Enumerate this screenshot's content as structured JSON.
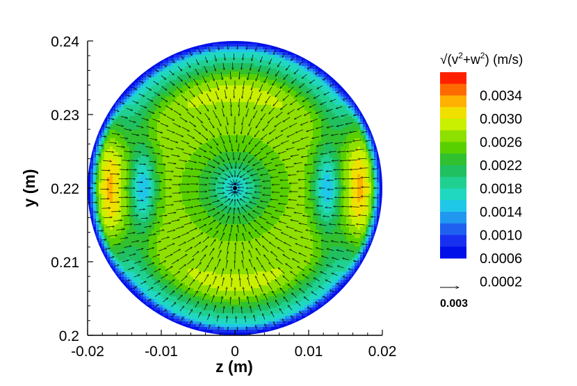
{
  "chart_data": {
    "type": "contour-vector",
    "title": "",
    "xlabel": "z  (m)",
    "ylabel": "y  (m)",
    "xlim": [
      -0.02,
      0.02
    ],
    "ylim": [
      0.2,
      0.24
    ],
    "x_ticks": [
      "-0.02",
      "-0.01",
      "0",
      "0.01",
      "0.02"
    ],
    "y_ticks": [
      "0.2",
      "0.21",
      "0.22",
      "0.23",
      "0.24"
    ],
    "domain": {
      "shape": "circle",
      "center_z": 0.0,
      "center_y": 0.22,
      "radius": 0.02
    },
    "contour_variable": {
      "title_prefix": "√(v",
      "sup1": "2",
      "mid": "+w",
      "sup2": "2",
      "suffix": ")  (m/s)"
    },
    "colorbar_levels": [
      "0.0034",
      "0.0030",
      "0.0026",
      "0.0022",
      "0.0018",
      "0.0014",
      "0.0010",
      "0.0006",
      "0.0002"
    ],
    "colorbar_colors": [
      "#ff2000",
      "#ff6a00",
      "#ffb000",
      "#f0e000",
      "#c8f000",
      "#8ee000",
      "#58d000",
      "#30c030",
      "#20c060",
      "#20d090",
      "#20d8c0",
      "#20c8e8",
      "#2098f0",
      "#2060f0",
      "#1830f0",
      "#0010e8"
    ],
    "value_range": [
      0.0,
      0.0036
    ],
    "flow_pattern": "converging toward center (0, 0.22) with two high-speed lobes near z = ±0.018",
    "reference_vector": {
      "label": "0.003",
      "magnitude": 0.003
    }
  }
}
